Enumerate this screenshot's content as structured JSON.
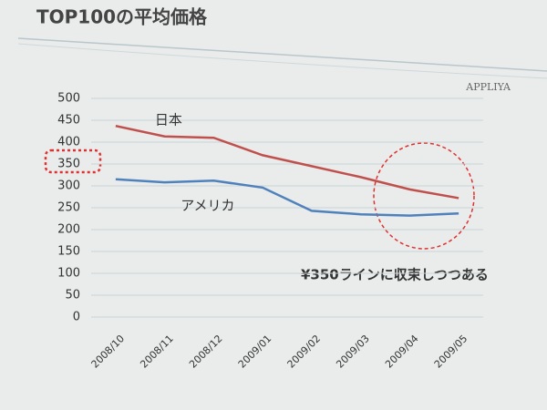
{
  "chart_data": {
    "type": "line",
    "title": "TOP100の平均価格",
    "brand": "APPLIYA",
    "annotation": "¥350ラインに収束しつつある",
    "categories": [
      "2008/10",
      "2008/11",
      "2008/12",
      "2009/01",
      "2009/02",
      "2009/03",
      "2009/04",
      "2009/05"
    ],
    "series": [
      {
        "name": "日本",
        "color": "#c0504d",
        "values": [
          437,
          413,
          410,
          370,
          345,
          320,
          292,
          272
        ]
      },
      {
        "name": "アメリカ",
        "color": "#4f81bd",
        "values": [
          315,
          308,
          312,
          296,
          243,
          235,
          232,
          237
        ]
      }
    ],
    "ylim": [
      0,
      500
    ],
    "yticks": [
      0,
      50,
      100,
      150,
      200,
      250,
      300,
      350,
      400,
      450,
      500
    ],
    "grid": true
  }
}
